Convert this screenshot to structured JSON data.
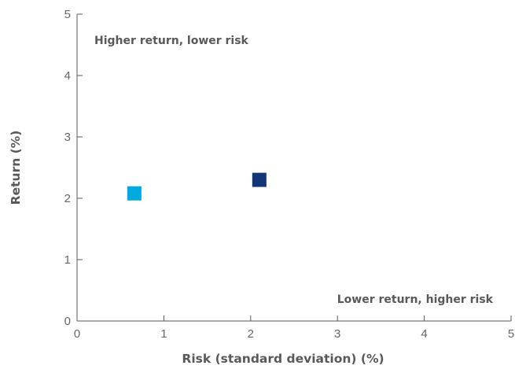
{
  "chart_data": {
    "type": "scatter",
    "title": "",
    "xlabel": "Risk (standard deviation) (%)",
    "ylabel": "Return (%)",
    "xlim": [
      0,
      5
    ],
    "ylim": [
      0,
      5
    ],
    "xticks": [
      "0",
      "1",
      "2",
      "3",
      "4",
      "5"
    ],
    "yticks": [
      "0",
      "1",
      "2",
      "3",
      "4",
      "5"
    ],
    "grid": false,
    "legend": "none",
    "points": [
      {
        "x": 0.66,
        "y": 2.08,
        "color": "#00a9e0",
        "marker": "square"
      },
      {
        "x": 2.1,
        "y": 2.3,
        "color": "#13357a",
        "marker": "square"
      }
    ],
    "annotations": [
      {
        "text": "Higher return, lower risk",
        "position": "top-left"
      },
      {
        "text": "Lower return, higher risk",
        "position": "bottom-right"
      }
    ]
  }
}
